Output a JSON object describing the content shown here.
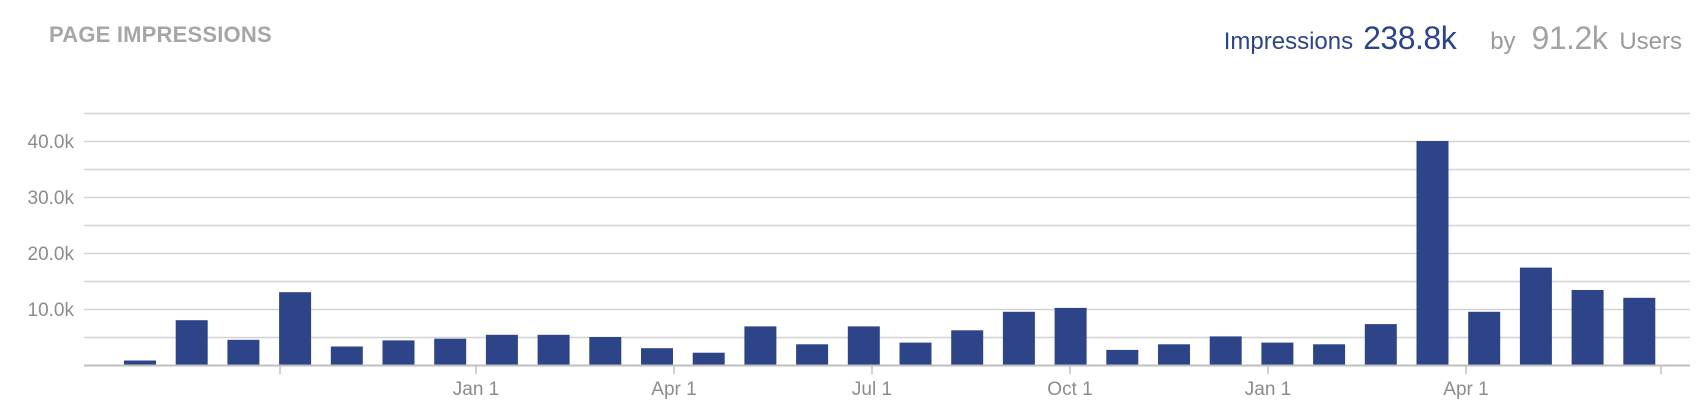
{
  "header": {
    "title": "PAGE IMPRESSIONS",
    "impressions_label": "Impressions",
    "impressions_value": "238.8k",
    "by_label": "by",
    "users_value": "91.2k",
    "users_label": "Users"
  },
  "colors": {
    "bar": "#2d4488",
    "grid": "#d2d2d2",
    "axis_text": "#8c8c8c"
  },
  "chart_data": {
    "type": "bar",
    "title": "PAGE IMPRESSIONS",
    "xlabel": "",
    "ylabel": "",
    "ylim": [
      0,
      45000
    ],
    "yticks": [
      10000,
      20000,
      30000,
      40000
    ],
    "ytick_labels": [
      "10.0k",
      "20.0k",
      "30.0k",
      "40.0k"
    ],
    "xtick_labels": [
      "Jan 1",
      "Apr 1",
      "Jul 1",
      "Oct 1",
      "Jan 1",
      "Apr 1"
    ],
    "grid": true,
    "values": [
      800,
      8000,
      4500,
      13000,
      3300,
      4400,
      4700,
      5400,
      5400,
      5000,
      3000,
      2200,
      6900,
      3700,
      6900,
      4000,
      6200,
      9500,
      10200,
      2700,
      3700,
      5100,
      4000,
      3700,
      7300,
      40000,
      9500,
      17400,
      13400,
      12000
    ]
  }
}
